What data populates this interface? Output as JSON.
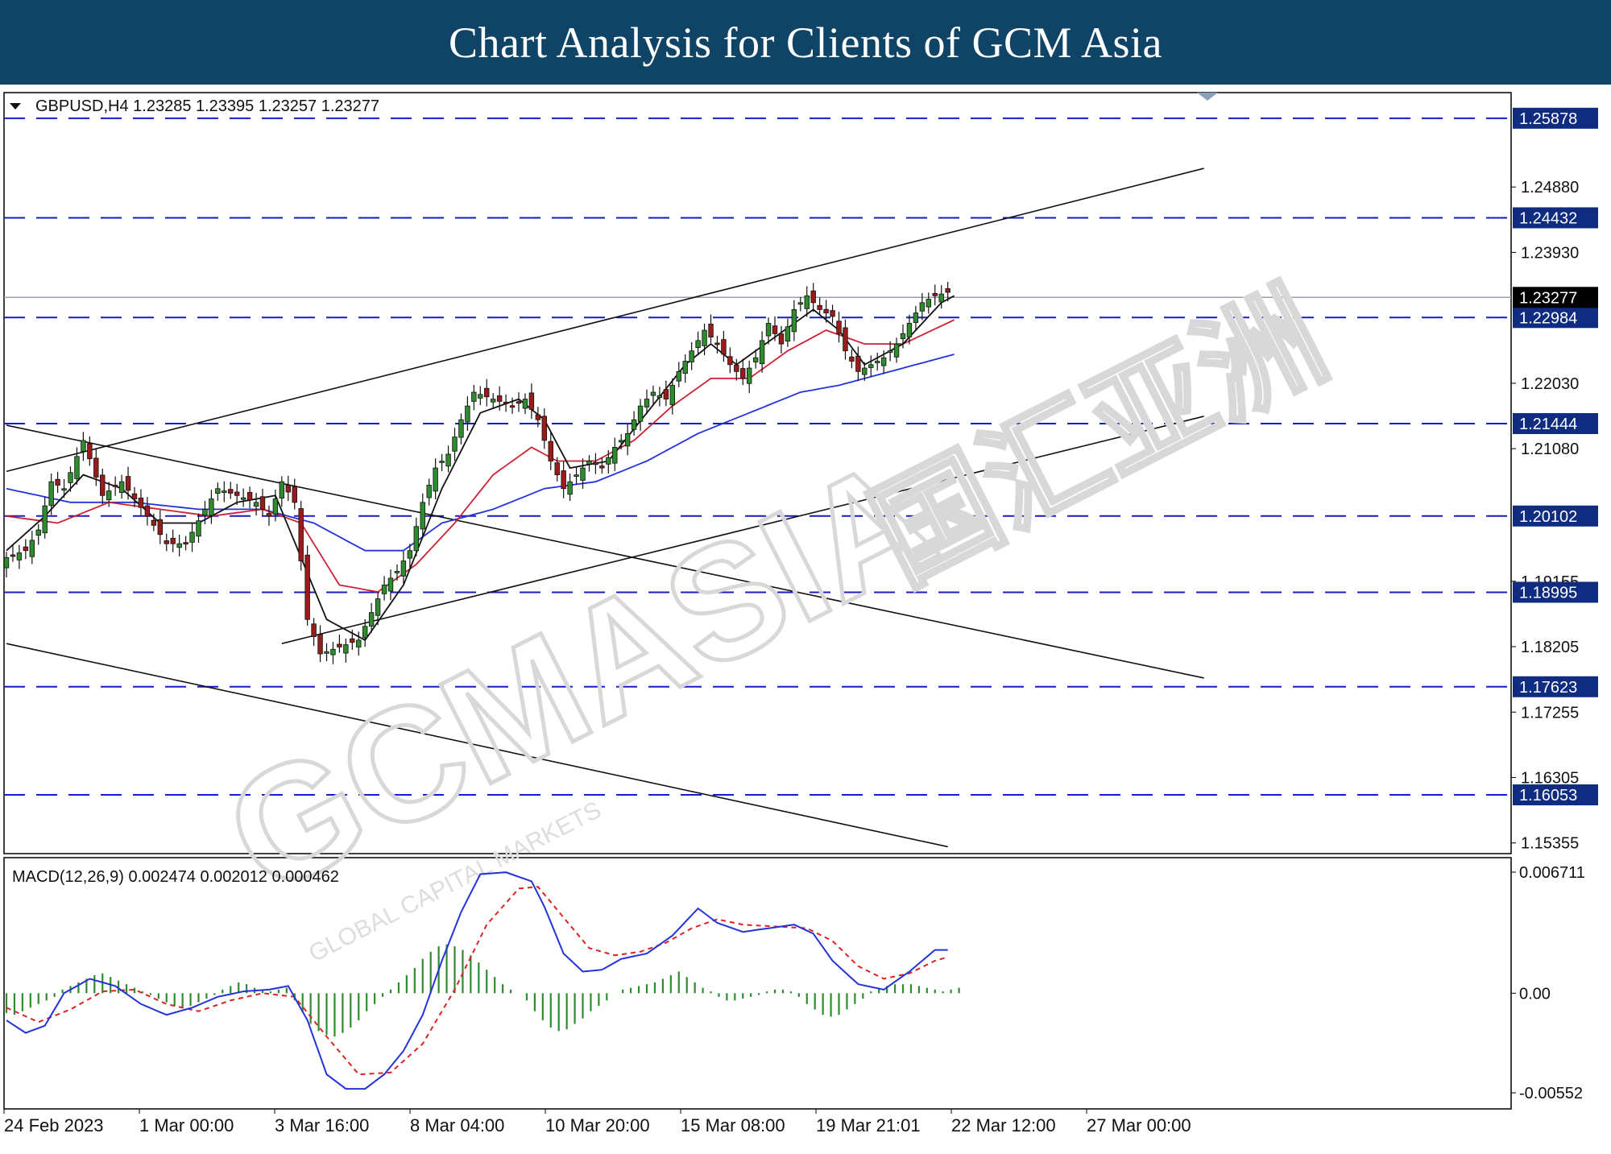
{
  "header": {
    "title": "Chart Analysis for Clients of GCM Asia"
  },
  "info": {
    "symbol_line": "GBPUSD,H4  1.23285 1.23395 1.23257 1.23277",
    "macd_line": "MACD(12,26,9) 0.002474 0.002012 0.000462"
  },
  "watermark": {
    "text": "GCMASIA",
    "sub": "GLOBAL CAPITAL MARKETS",
    "cjk": "国汇亚洲"
  },
  "colors": {
    "header_bg": "#0f4466",
    "support_line": "#1a1acc",
    "ma_fast": "#111111",
    "ma_mid": "#cc2233",
    "ma_slow": "#2233dd",
    "macd_line": "#2233dd",
    "macd_signal": "#dd2222",
    "macd_hist": "#2e8b2e",
    "candle_up": "#2e8b2e",
    "candle_down": "#9b1b1b",
    "label_bg": "#0f2c80"
  },
  "chart_data": [
    {
      "type": "candlestick",
      "symbol": "GBPUSD",
      "timeframe": "H4",
      "ohlc_current": [
        1.23285,
        1.23395,
        1.23257,
        1.23277
      ],
      "ylim": [
        1.152,
        1.2625
      ],
      "y_ticks": [
        "1.24880",
        "1.23930",
        "1.22030",
        "1.21080",
        "1.19155",
        "1.18205",
        "1.17255",
        "1.16305",
        "1.15355"
      ],
      "x_ticks": [
        "24 Feb 2023",
        "1 Mar 00:00",
        "3 Mar 16:00",
        "8 Mar 04:00",
        "10 Mar 20:00",
        "15 Mar 08:00",
        "19 Mar 21:01",
        "22 Mar 12:00",
        "27 Mar 00:00"
      ],
      "current_price_label": "1.23277",
      "levels": [
        "1.25878",
        "1.24432",
        "1.22984",
        "1.21444",
        "1.20102",
        "1.18995",
        "1.17623",
        "1.16053"
      ],
      "close_path": [
        [
          0,
          1.195
        ],
        [
          3,
          1.196
        ],
        [
          5,
          1.199
        ],
        [
          7,
          1.206
        ],
        [
          9,
          1.205
        ],
        [
          12,
          1.212
        ],
        [
          15,
          1.204
        ],
        [
          18,
          1.206
        ],
        [
          22,
          1.201
        ],
        [
          25,
          1.197
        ],
        [
          28,
          1.197
        ],
        [
          31,
          1.202
        ],
        [
          33,
          1.205
        ],
        [
          36,
          1.204
        ],
        [
          39,
          1.203
        ],
        [
          41,
          1.201
        ],
        [
          43,
          1.206
        ],
        [
          45,
          1.203
        ],
        [
          47,
          1.186
        ],
        [
          49,
          1.181
        ],
        [
          52,
          1.182
        ],
        [
          55,
          1.183
        ],
        [
          57,
          1.187
        ],
        [
          59,
          1.191
        ],
        [
          61,
          1.193
        ],
        [
          63,
          1.196
        ],
        [
          65,
          1.203
        ],
        [
          67,
          1.208
        ],
        [
          69,
          1.21
        ],
        [
          71,
          1.215
        ],
        [
          73,
          1.219
        ],
        [
          76,
          1.218
        ],
        [
          79,
          1.217
        ],
        [
          81,
          1.218
        ],
        [
          83,
          1.215
        ],
        [
          85,
          1.209
        ],
        [
          87,
          1.205
        ],
        [
          89,
          1.207
        ],
        [
          91,
          1.209
        ],
        [
          93,
          1.208
        ],
        [
          95,
          1.211
        ],
        [
          97,
          1.213
        ],
        [
          99,
          1.217
        ],
        [
          101,
          1.219
        ],
        [
          103,
          1.218
        ],
        [
          105,
          1.222
        ],
        [
          107,
          1.225
        ],
        [
          109,
          1.228
        ],
        [
          111,
          1.226
        ],
        [
          113,
          1.223
        ],
        [
          115,
          1.221
        ],
        [
          117,
          1.224
        ],
        [
          119,
          1.229
        ],
        [
          121,
          1.226
        ],
        [
          123,
          1.231
        ],
        [
          125,
          1.233
        ],
        [
          127,
          1.231
        ],
        [
          129,
          1.23
        ],
        [
          131,
          1.225
        ],
        [
          133,
          1.222
        ],
        [
          135,
          1.223
        ],
        [
          137,
          1.224
        ],
        [
          139,
          1.226
        ],
        [
          141,
          1.229
        ],
        [
          143,
          1.232
        ],
        [
          145,
          1.233
        ],
        [
          147,
          1.2335
        ]
      ],
      "ma_fast": [
        [
          0,
          1.196
        ],
        [
          6,
          1.201
        ],
        [
          12,
          1.207
        ],
        [
          18,
          1.205
        ],
        [
          24,
          1.2
        ],
        [
          30,
          1.2
        ],
        [
          36,
          1.203
        ],
        [
          42,
          1.204
        ],
        [
          46,
          1.195
        ],
        [
          50,
          1.186
        ],
        [
          56,
          1.183
        ],
        [
          62,
          1.191
        ],
        [
          68,
          1.205
        ],
        [
          74,
          1.216
        ],
        [
          80,
          1.218
        ],
        [
          84,
          1.215
        ],
        [
          88,
          1.208
        ],
        [
          94,
          1.209
        ],
        [
          100,
          1.216
        ],
        [
          106,
          1.223
        ],
        [
          110,
          1.226
        ],
        [
          114,
          1.223
        ],
        [
          120,
          1.227
        ],
        [
          126,
          1.231
        ],
        [
          130,
          1.228
        ],
        [
          134,
          1.223
        ],
        [
          140,
          1.226
        ],
        [
          146,
          1.232
        ],
        [
          148,
          1.233
        ]
      ],
      "ma_mid": [
        [
          0,
          1.201
        ],
        [
          8,
          1.2
        ],
        [
          16,
          1.203
        ],
        [
          24,
          1.202
        ],
        [
          32,
          1.201
        ],
        [
          40,
          1.202
        ],
        [
          46,
          1.2
        ],
        [
          52,
          1.191
        ],
        [
          58,
          1.19
        ],
        [
          64,
          1.194
        ],
        [
          70,
          1.2
        ],
        [
          76,
          1.207
        ],
        [
          82,
          1.211
        ],
        [
          86,
          1.209
        ],
        [
          92,
          1.209
        ],
        [
          98,
          1.212
        ],
        [
          104,
          1.217
        ],
        [
          110,
          1.221
        ],
        [
          116,
          1.221
        ],
        [
          122,
          1.225
        ],
        [
          128,
          1.228
        ],
        [
          134,
          1.226
        ],
        [
          140,
          1.226
        ],
        [
          148,
          1.2295
        ]
      ],
      "ma_slow": [
        [
          0,
          1.205
        ],
        [
          10,
          1.203
        ],
        [
          20,
          1.203
        ],
        [
          30,
          1.202
        ],
        [
          40,
          1.202
        ],
        [
          48,
          1.2
        ],
        [
          56,
          1.196
        ],
        [
          62,
          1.196
        ],
        [
          68,
          1.2
        ],
        [
          76,
          1.202
        ],
        [
          84,
          1.205
        ],
        [
          92,
          1.206
        ],
        [
          100,
          1.209
        ],
        [
          108,
          1.213
        ],
        [
          116,
          1.216
        ],
        [
          124,
          1.219
        ],
        [
          130,
          1.22
        ],
        [
          138,
          1.222
        ],
        [
          148,
          1.2245
        ]
      ],
      "trend_lines": [
        [
          [
            0,
            1.2075
          ],
          [
            187,
            1.2515
          ]
        ],
        [
          [
            0,
            1.2142
          ],
          [
            187,
            1.1775
          ]
        ],
        [
          [
            0,
            1.1825
          ],
          [
            147,
            1.153
          ]
        ],
        [
          [
            43,
            1.1825
          ],
          [
            187,
            1.2155
          ]
        ]
      ]
    },
    {
      "type": "macd",
      "params": [
        12,
        26,
        9
      ],
      "values": {
        "macd": 0.002474,
        "signal": 0.002012,
        "histogram": 0.000462
      },
      "ylim": [
        -0.00552,
        0.006711
      ],
      "y_ticks": [
        "0.006711",
        "0.00",
        "-0.00552"
      ],
      "macd_path": [
        [
          0,
          -0.0015
        ],
        [
          3,
          -0.0022
        ],
        [
          6,
          -0.0018
        ],
        [
          9,
          0.0
        ],
        [
          13,
          0.0008
        ],
        [
          17,
          0.0004
        ],
        [
          21,
          -0.0006
        ],
        [
          25,
          -0.0012
        ],
        [
          29,
          -0.0008
        ],
        [
          33,
          -0.0002
        ],
        [
          37,
          0.0001
        ],
        [
          41,
          0.0002
        ],
        [
          44,
          0.0004
        ],
        [
          47,
          -0.0015
        ],
        [
          50,
          -0.0045
        ],
        [
          53,
          -0.0053
        ],
        [
          56,
          -0.0053
        ],
        [
          59,
          -0.0045
        ],
        [
          62,
          -0.0032
        ],
        [
          65,
          -0.0012
        ],
        [
          68,
          0.0018
        ],
        [
          71,
          0.0045
        ],
        [
          74,
          0.0066
        ],
        [
          78,
          0.0067
        ],
        [
          82,
          0.0062
        ],
        [
          84,
          0.0048
        ],
        [
          87,
          0.0022
        ],
        [
          90,
          0.0012
        ],
        [
          93,
          0.0013
        ],
        [
          96,
          0.0019
        ],
        [
          100,
          0.0022
        ],
        [
          104,
          0.0032
        ],
        [
          108,
          0.0047
        ],
        [
          111,
          0.0039
        ],
        [
          115,
          0.0034
        ],
        [
          119,
          0.0036
        ],
        [
          123,
          0.0038
        ],
        [
          126,
          0.0033
        ],
        [
          129,
          0.0018
        ],
        [
          133,
          0.0005
        ],
        [
          137,
          0.0002
        ],
        [
          141,
          0.0012
        ],
        [
          145,
          0.0024
        ],
        [
          147,
          0.0024
        ]
      ],
      "signal_path": [
        [
          0,
          -0.0008
        ],
        [
          5,
          -0.0016
        ],
        [
          10,
          -0.0009
        ],
        [
          15,
          0.0001
        ],
        [
          20,
          0.0002
        ],
        [
          25,
          -0.0006
        ],
        [
          30,
          -0.001
        ],
        [
          35,
          -0.0004
        ],
        [
          40,
          0.0
        ],
        [
          45,
          -0.0002
        ],
        [
          50,
          -0.0024
        ],
        [
          55,
          -0.0045
        ],
        [
          60,
          -0.0044
        ],
        [
          65,
          -0.0028
        ],
        [
          70,
          0.0002
        ],
        [
          75,
          0.0038
        ],
        [
          80,
          0.0058
        ],
        [
          83,
          0.0059
        ],
        [
          87,
          0.0042
        ],
        [
          91,
          0.0025
        ],
        [
          95,
          0.0021
        ],
        [
          99,
          0.0023
        ],
        [
          103,
          0.0028
        ],
        [
          107,
          0.0036
        ],
        [
          111,
          0.0041
        ],
        [
          115,
          0.0038
        ],
        [
          120,
          0.0037
        ],
        [
          125,
          0.0036
        ],
        [
          129,
          0.0029
        ],
        [
          133,
          0.0015
        ],
        [
          137,
          0.0008
        ],
        [
          141,
          0.0011
        ],
        [
          145,
          0.0018
        ],
        [
          147,
          0.002
        ]
      ],
      "histogram": [
        -0.0011,
        -0.0012,
        -0.001,
        -0.0008,
        -0.0006,
        -0.0004,
        -0.0002,
        0.0002,
        0.0004,
        0.0006,
        0.0008,
        0.001,
        0.0011,
        0.0009,
        0.0007,
        0.0005,
        0.0003,
        0.0001,
        -0.0001,
        -0.0003,
        -0.0005,
        -0.0007,
        -0.0008,
        -0.0007,
        -0.0005,
        -0.0003,
        -0.0001,
        0.0002,
        0.0004,
        0.0006,
        0.0005,
        0.0003,
        0.0002,
        0.0001,
        0.0002,
        0.0003,
        -0.0004,
        -0.001,
        -0.0017,
        -0.0021,
        -0.0023,
        -0.0024,
        -0.0022,
        -0.0019,
        -0.0015,
        -0.001,
        -0.0006,
        -0.0002,
        0.0002,
        0.0006,
        0.001,
        0.0014,
        0.0019,
        0.0023,
        0.0026,
        0.0027,
        0.0026,
        0.0024,
        0.0021,
        0.0017,
        0.0013,
        0.0009,
        0.0005,
        0.0002,
        0.0,
        -0.0004,
        -0.001,
        -0.0015,
        -0.0019,
        -0.0021,
        -0.002,
        -0.0017,
        -0.0014,
        -0.001,
        -0.0007,
        -0.0004,
        0.0,
        0.0002,
        0.0003,
        0.0004,
        0.0005,
        0.0006,
        0.0008,
        0.001,
        0.0012,
        0.0009,
        0.0006,
        0.0003,
        0.0001,
        -0.0002,
        -0.0004,
        -0.0004,
        -0.0003,
        -0.0002,
        -0.0001,
        0.0001,
        0.0002,
        0.0002,
        0.0001,
        -0.0002,
        -0.0006,
        -0.0009,
        -0.0012,
        -0.0013,
        -0.0012,
        -0.0009,
        -0.0006,
        -0.0003,
        0.0001,
        0.0003,
        0.0004,
        0.0005,
        0.0005,
        0.0005,
        0.0004,
        0.0003,
        0.0002,
        0.0001,
        0.0002,
        0.0003
      ]
    }
  ]
}
